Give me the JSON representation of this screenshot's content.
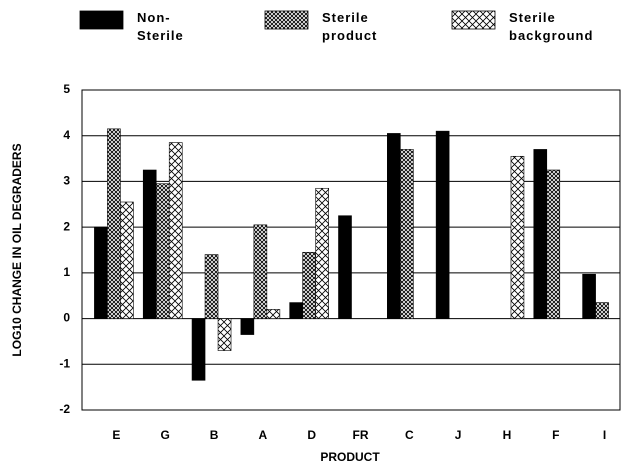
{
  "chart_data": {
    "type": "bar",
    "xlabel": "PRODUCT",
    "ylabel": "LOG10 CHANGE IN OIL DEGRADERS",
    "categories": [
      "E",
      "G",
      "B",
      "A",
      "D",
      "FR",
      "C",
      "J",
      "H",
      "F",
      "I"
    ],
    "series": [
      {
        "name": "Non-Sterile",
        "color": "#000000",
        "pattern": "solid",
        "values": [
          2.0,
          3.25,
          -1.35,
          -0.35,
          0.35,
          2.25,
          4.05,
          4.1,
          null,
          3.7,
          0.97
        ]
      },
      {
        "name": "Sterile product",
        "color": "#000000",
        "pattern": "dense-crosshatch",
        "values": [
          4.15,
          2.95,
          1.4,
          2.05,
          1.45,
          null,
          3.7,
          null,
          null,
          3.25,
          0.35
        ]
      },
      {
        "name": "Sterile background",
        "color": "#000000",
        "pattern": "open-crosshatch",
        "values": [
          2.55,
          3.85,
          -0.7,
          0.2,
          2.85,
          null,
          null,
          null,
          3.55,
          null,
          null
        ]
      }
    ],
    "ylim": [
      -2,
      5
    ],
    "yticks": [
      -2,
      -1,
      0,
      1,
      2,
      3,
      4,
      5
    ],
    "grid": true,
    "legend": "top"
  }
}
